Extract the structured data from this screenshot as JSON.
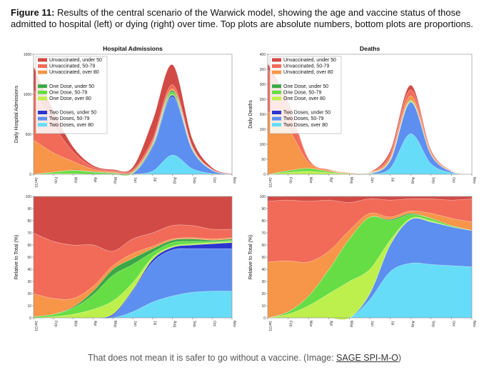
{
  "figure": {
    "label": "Figure 11:",
    "text": " Results of the central scenario of the Warwick model, showing the age and vaccine status of those admitted to hospital (left) or dying (right) over time. Top plots are absolute numbers, bottom plots are proportions."
  },
  "footer": {
    "text": "That does not mean it is safer to go without a vaccine. (Image: ",
    "link": "SAGE SPI-M-O",
    "close": ")"
  },
  "colors": {
    "unvacc_u50": "#d24a45",
    "unvacc_5079": "#f26a58",
    "unvacc_o80": "#f79548",
    "one_u50": "#3aa845",
    "one_5079": "#66dd44",
    "one_o80": "#bdf04c",
    "two_u50": "#2b35cf",
    "two_5079": "#5c8ff0",
    "two_o80": "#66dcf8"
  },
  "chart_data": [
    {
      "id": "hospital-absolute",
      "type": "area",
      "title": "Hospital Admissions",
      "ylabel": "Daily Hospital Admissions",
      "ylim": [
        0,
        1500
      ],
      "yticks": [
        "0",
        "500",
        "1000",
        "1500"
      ],
      "categories": [
        "Jan'21",
        "Feb",
        "Mar",
        "Apr",
        "May",
        "Jun",
        "Jul",
        "Aug",
        "Sep",
        "Oct",
        "Nov"
      ],
      "legend_groups": [
        [
          "Unvaccinated, under 50",
          "Unvaccinated, 50-79",
          "Unvaccinated, over 80"
        ],
        [
          "One Dose, under 50",
          "One Dose, 50-79",
          "One Dose, over 80"
        ],
        [
          "Two Doses, under 50",
          "Two Doses, 50-79",
          "Two Doses, over 80"
        ]
      ],
      "series": [
        {
          "name": "Two Doses, over 80",
          "values": [
            0,
            0,
            0,
            0,
            0,
            2,
            40,
            240,
            70,
            10,
            0
          ]
        },
        {
          "name": "Two Doses, 50-79",
          "values": [
            0,
            0,
            0,
            0,
            1,
            8,
            290,
            730,
            230,
            40,
            3
          ]
        },
        {
          "name": "Two Doses, under 50",
          "values": [
            0,
            0,
            0,
            0,
            0,
            1,
            20,
            20,
            8,
            1,
            0
          ]
        },
        {
          "name": "One Dose, over 80",
          "values": [
            0,
            8,
            8,
            2,
            1,
            2,
            6,
            10,
            4,
            1,
            0
          ]
        },
        {
          "name": "One Dose, 50-79",
          "values": [
            0,
            20,
            40,
            25,
            12,
            10,
            18,
            30,
            10,
            2,
            0
          ]
        },
        {
          "name": "One Dose, under 50",
          "values": [
            0,
            0,
            2,
            5,
            5,
            5,
            12,
            20,
            8,
            2,
            0
          ]
        },
        {
          "name": "Unvaccinated, over 80",
          "values": [
            430,
            240,
            110,
            30,
            12,
            10,
            15,
            20,
            8,
            2,
            0
          ]
        },
        {
          "name": "Unvaccinated, 50-79",
          "values": [
            630,
            350,
            120,
            30,
            15,
            20,
            40,
            50,
            15,
            4,
            0
          ]
        },
        {
          "name": "Unvaccinated, under 50",
          "values": [
            290,
            180,
            60,
            20,
            14,
            30,
            230,
            250,
            90,
            20,
            2
          ]
        }
      ]
    },
    {
      "id": "deaths-absolute",
      "type": "area",
      "title": "Deaths",
      "ylabel": "Daily Deaths",
      "ylim": [
        0,
        400
      ],
      "yticks": [
        "0",
        "50",
        "100",
        "150",
        "200",
        "250",
        "300",
        "350",
        "400"
      ],
      "categories": [
        "Jan'21",
        "Feb",
        "Mar",
        "Apr",
        "May",
        "Jun",
        "Jul",
        "Aug",
        "Sep",
        "Oct",
        "Nov"
      ],
      "legend_groups": [
        [
          "Unvaccinated, under 50",
          "Unvaccinated, 50-79",
          "Unvaccinated, over 80"
        ],
        [
          "One Dose, under 50",
          "One Dose, 50-79",
          "One Dose, over 80"
        ],
        [
          "Two Doses, under 50",
          "Two Doses, 50-79",
          "Two Doses, over 80"
        ]
      ],
      "series": [
        {
          "name": "Two Doses, over 80",
          "values": [
            0,
            0,
            0,
            0,
            0,
            1,
            20,
            135,
            35,
            5,
            0
          ]
        },
        {
          "name": "Two Doses, 50-79",
          "values": [
            0,
            0,
            0,
            0,
            0,
            1,
            25,
            105,
            30,
            4,
            0
          ]
        },
        {
          "name": "Two Doses, under 50",
          "values": [
            0,
            0,
            0,
            0,
            0,
            0,
            1,
            1,
            0,
            0,
            0
          ]
        },
        {
          "name": "One Dose, over 80",
          "values": [
            0,
            6,
            10,
            5,
            2,
            1,
            1,
            2,
            1,
            0,
            0
          ]
        },
        {
          "name": "One Dose, 50-79",
          "values": [
            0,
            6,
            10,
            4,
            1,
            1,
            2,
            3,
            1,
            0,
            0
          ]
        },
        {
          "name": "One Dose, under 50",
          "values": [
            0,
            0,
            0,
            0,
            0,
            0,
            1,
            1,
            0,
            0,
            0
          ]
        },
        {
          "name": "Unvaccinated, over 80",
          "values": [
            210,
            140,
            20,
            4,
            2,
            1,
            8,
            15,
            5,
            1,
            0
          ]
        },
        {
          "name": "Unvaccinated, 50-79",
          "values": [
            140,
            80,
            10,
            3,
            1,
            1,
            10,
            20,
            5,
            1,
            0
          ]
        },
        {
          "name": "Unvaccinated, under 50",
          "values": [
            20,
            10,
            2,
            0,
            0,
            1,
            10,
            15,
            4,
            1,
            0
          ]
        }
      ]
    },
    {
      "id": "hospital-proportion",
      "type": "area",
      "ylabel": "Relative to Total (%)",
      "ylim": [
        0,
        100
      ],
      "yticks": [
        "0",
        "10",
        "20",
        "30",
        "40",
        "50",
        "60",
        "70",
        "80",
        "90",
        "100"
      ],
      "categories": [
        "Jan'21",
        "Feb",
        "Mar",
        "Apr",
        "May",
        "Jun",
        "Jul",
        "Aug",
        "Sep",
        "Oct",
        "Nov"
      ],
      "series": [
        {
          "name": "Two Doses, over 80",
          "values": [
            0,
            0,
            0,
            0,
            0,
            5,
            13,
            18,
            21,
            22,
            22
          ]
        },
        {
          "name": "Two Doses, 50-79",
          "values": [
            0,
            0,
            0,
            0,
            2,
            17,
            33,
            38,
            36,
            35,
            35
          ]
        },
        {
          "name": "Two Doses, under 50",
          "values": [
            0,
            0,
            0,
            0,
            1,
            1,
            2,
            2,
            3,
            4,
            5
          ]
        },
        {
          "name": "One Dose, over 80",
          "values": [
            0,
            1,
            3,
            7,
            11,
            6,
            2,
            1,
            1,
            1,
            1
          ]
        },
        {
          "name": "One Dose, 50-79",
          "values": [
            1,
            2,
            5,
            12,
            21,
            15,
            4,
            3,
            2,
            1,
            1
          ]
        },
        {
          "name": "One Dose, under 50",
          "values": [
            0,
            0,
            1,
            3,
            5,
            5,
            3,
            2,
            2,
            1,
            1
          ]
        },
        {
          "name": "Unvaccinated, over 80",
          "values": [
            19,
            13,
            7,
            4,
            3,
            4,
            2,
            1,
            1,
            1,
            1
          ]
        },
        {
          "name": "Unvaccinated, 50-79",
          "values": [
            50,
            47,
            44,
            34,
            12,
            12,
            11,
            11,
            10,
            8,
            7
          ]
        },
        {
          "name": "Unvaccinated, under 50",
          "values": [
            30,
            37,
            40,
            40,
            45,
            35,
            30,
            24,
            24,
            27,
            27
          ]
        }
      ]
    },
    {
      "id": "deaths-proportion",
      "type": "area",
      "ylabel": "Relative to Total (%)",
      "ylim": [
        0,
        100
      ],
      "yticks": [
        "0",
        "10",
        "20",
        "30",
        "40",
        "50",
        "60",
        "70",
        "80",
        "90",
        "100"
      ],
      "categories": [
        "Jan'21",
        "Feb",
        "Mar",
        "Apr",
        "May",
        "Jun",
        "Jul",
        "Aug",
        "Sep",
        "Oct",
        "Nov"
      ],
      "series": [
        {
          "name": "Two Doses, over 80",
          "values": [
            0,
            0,
            0,
            0,
            0,
            15,
            38,
            45,
            44,
            43,
            42
          ]
        },
        {
          "name": "Two Doses, 50-79",
          "values": [
            0,
            0,
            0,
            0,
            0,
            5,
            22,
            36,
            35,
            32,
            30
          ]
        },
        {
          "name": "Two Doses, under 50",
          "values": [
            0,
            0,
            0,
            0,
            0,
            0,
            0,
            0,
            0,
            0,
            0
          ]
        },
        {
          "name": "One Dose, over 80",
          "values": [
            0,
            3,
            10,
            20,
            30,
            20,
            4,
            1,
            1,
            0,
            0
          ]
        },
        {
          "name": "One Dose, 50-79",
          "values": [
            0,
            2,
            8,
            20,
            35,
            43,
            16,
            3,
            2,
            1,
            0
          ]
        },
        {
          "name": "One Dose, under 50",
          "values": [
            0,
            0,
            0,
            0,
            0,
            0,
            1,
            1,
            0,
            0,
            0
          ]
        },
        {
          "name": "Unvaccinated, over 80",
          "values": [
            46,
            42,
            28,
            15,
            7,
            3,
            2,
            2,
            4,
            6,
            7
          ]
        },
        {
          "name": "Unvaccinated, 50-79",
          "values": [
            50,
            50,
            50,
            42,
            23,
            12,
            14,
            10,
            12,
            15,
            19
          ]
        },
        {
          "name": "Unvaccinated, under 50",
          "values": [
            4,
            3,
            4,
            3,
            5,
            2,
            3,
            2,
            2,
            3,
            2
          ]
        }
      ]
    }
  ]
}
